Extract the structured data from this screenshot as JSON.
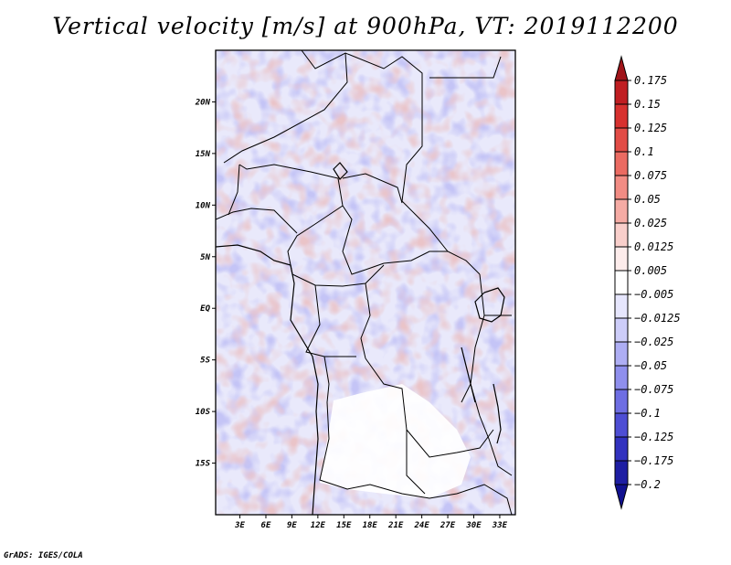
{
  "title": "Vertical velocity [m/s] at 900hPa, VT: 2019112200",
  "credit": "GrADS: IGES/COLA",
  "map": {
    "lat_labels": [
      {
        "label": "20N",
        "lat": 20
      },
      {
        "label": "15N",
        "lat": 15
      },
      {
        "label": "10N",
        "lat": 10
      },
      {
        "label": "5N",
        "lat": 5
      },
      {
        "label": "EQ",
        "lat": 0
      },
      {
        "label": "5S",
        "lat": -5
      },
      {
        "label": "10S",
        "lat": -10
      },
      {
        "label": "15S",
        "lat": -15
      }
    ],
    "lon_labels": [
      {
        "label": "3E",
        "lon": 3
      },
      {
        "label": "6E",
        "lon": 6
      },
      {
        "label": "9E",
        "lon": 9
      },
      {
        "label": "12E",
        "lon": 12
      },
      {
        "label": "15E",
        "lon": 15
      },
      {
        "label": "18E",
        "lon": 18
      },
      {
        "label": "21E",
        "lon": 21
      },
      {
        "label": "24E",
        "lon": 24
      },
      {
        "label": "27E",
        "lon": 27
      },
      {
        "label": "30E",
        "lon": 30
      },
      {
        "label": "33E",
        "lon": 33
      }
    ],
    "lat_range": [
      -20,
      25
    ],
    "lon_range": [
      0.2,
      34.8
    ]
  },
  "colorbar": {
    "levels": [
      "0.175",
      "0.15",
      "0.125",
      "0.1",
      "0.075",
      "0.05",
      "0.025",
      "0.0125",
      "0.005",
      "−0.005",
      "−0.0125",
      "−0.025",
      "−0.05",
      "−0.075",
      "−0.1",
      "−0.125",
      "−0.175",
      "−0.2"
    ],
    "colors": [
      "#a01419",
      "#c01e22",
      "#d7312f",
      "#e24c46",
      "#eb6b62",
      "#f28c84",
      "#f5aba4",
      "#f9cfcb",
      "#fdeceb",
      "#ffffff",
      "#e6e6fd",
      "#cdcdf9",
      "#aeaef4",
      "#8f8fed",
      "#6e6ee3",
      "#4e4ed4",
      "#3232bf",
      "#1e1ea3",
      "#111190"
    ]
  }
}
